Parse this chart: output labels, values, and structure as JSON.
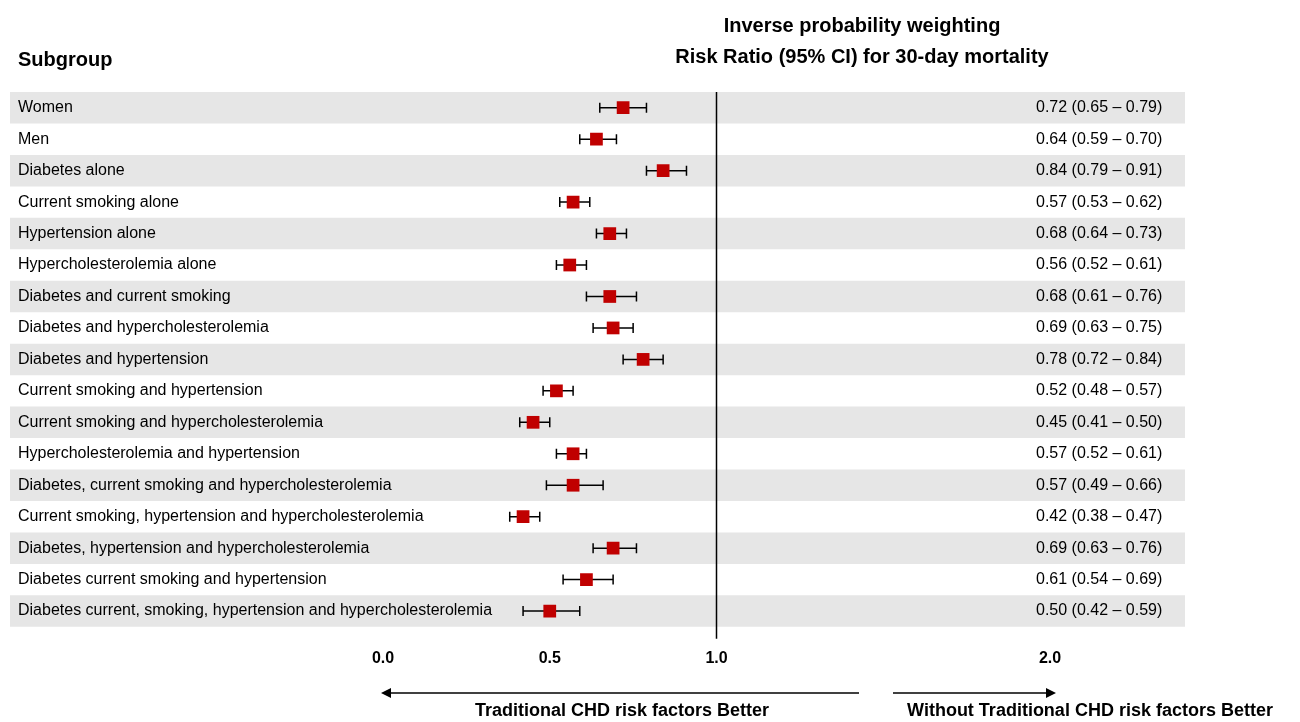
{
  "chart_data": {
    "type": "scatter",
    "orientation": "horizontal",
    "title": "Inverse probability weighting",
    "subtitle": "Risk Ratio (95% CI) for 30-day mortality",
    "ylabel": "Subgroup",
    "categories": [
      "Women",
      "Men",
      "Diabetes alone",
      "Current smoking alone",
      "Hypertension alone",
      "Hypercholesterolemia alone",
      "Diabetes and current smoking",
      "Diabetes and hypercholesterolemia",
      "Diabetes and hypertension",
      "Current smoking and hypertension",
      "Current smoking and hypercholesterolemia",
      "Hypercholesterolemia and hypertension",
      "Diabetes, current smoking and hypercholesterolemia",
      "Current smoking, hypertension and hypercholesterolemia",
      "Diabetes, hypertension and hypercholesterolemia",
      "Diabetes current smoking and hypertension",
      "Diabetes current, smoking, hypertension and hypercholesterolemia"
    ],
    "values": [
      0.72,
      0.64,
      0.84,
      0.57,
      0.68,
      0.56,
      0.68,
      0.69,
      0.78,
      0.52,
      0.45,
      0.57,
      0.57,
      0.42,
      0.69,
      0.61,
      0.5
    ],
    "errors": [
      [
        0.65,
        0.79
      ],
      [
        0.59,
        0.7
      ],
      [
        0.79,
        0.91
      ],
      [
        0.53,
        0.62
      ],
      [
        0.64,
        0.73
      ],
      [
        0.52,
        0.61
      ],
      [
        0.61,
        0.76
      ],
      [
        0.63,
        0.75
      ],
      [
        0.72,
        0.84
      ],
      [
        0.48,
        0.57
      ],
      [
        0.41,
        0.5
      ],
      [
        0.52,
        0.61
      ],
      [
        0.49,
        0.66
      ],
      [
        0.38,
        0.47
      ],
      [
        0.63,
        0.76
      ],
      [
        0.54,
        0.69
      ],
      [
        0.42,
        0.59
      ]
    ],
    "value_labels": [
      "0.72 (0.65 – 0.79)",
      "0.64 (0.59 – 0.70)",
      "0.84 (0.79 – 0.91)",
      "0.57 (0.53 – 0.62)",
      "0.68 (0.64 – 0.73)",
      "0.56 (0.52 – 0.61)",
      "0.68 (0.61 – 0.76)",
      "0.69 (0.63 – 0.75)",
      "0.78 (0.72 – 0.84)",
      "0.52 (0.48 – 0.57)",
      "0.45 (0.41 – 0.50)",
      "0.57 (0.52 – 0.61)",
      "0.57 (0.49 – 0.66)",
      "0.42 (0.38 – 0.47)",
      "0.69 (0.63 – 0.76)",
      "0.61 (0.54 – 0.69)",
      "0.50 (0.42 – 0.59)"
    ],
    "color": "#c00000",
    "marker": "square",
    "xlim": [
      0,
      2
    ],
    "xticks": [
      {
        "value": 0,
        "label": "0.0"
      },
      {
        "value": 0.5,
        "label": "0.5"
      },
      {
        "value": 1,
        "label": "1.0"
      },
      {
        "value": 2,
        "label": "2.0"
      }
    ],
    "ref_lines": [
      {
        "axis": "x",
        "value": 1,
        "color": "#000000"
      }
    ],
    "annotations": [
      "Traditional CHD risk factors Better",
      "Without Traditional CHD risk factors Better"
    ],
    "grid": false,
    "legend": false
  }
}
